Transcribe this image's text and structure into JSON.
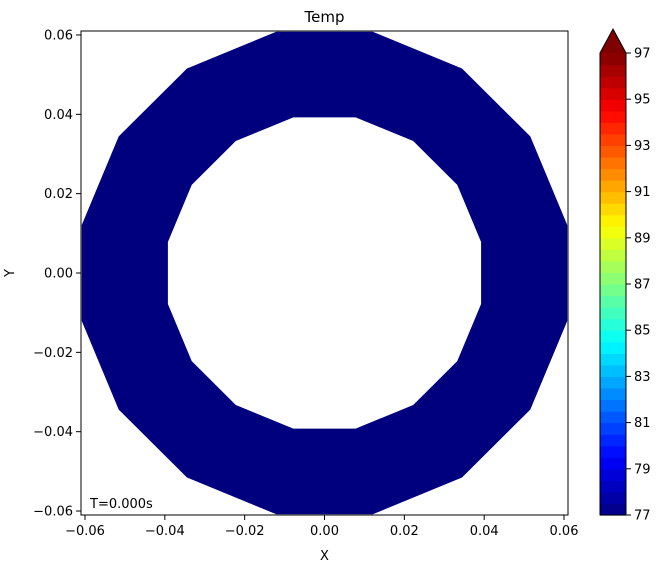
{
  "chart_data": {
    "type": "heatmap",
    "title": "Temp",
    "xlabel": "X",
    "ylabel": "Y",
    "xlim": [
      -0.061,
      0.061
    ],
    "ylim": [
      -0.061,
      0.061
    ],
    "xticks": [
      -0.06,
      -0.04,
      -0.02,
      0.0,
      0.02,
      0.04,
      0.06
    ],
    "xtick_labels": [
      "−0.06",
      "−0.04",
      "−0.02",
      "0.00",
      "0.02",
      "0.04",
      "0.06"
    ],
    "yticks": [
      -0.06,
      -0.04,
      -0.02,
      0.0,
      0.02,
      0.04,
      0.06
    ],
    "ytick_labels": [
      "−0.06",
      "−0.04",
      "−0.02",
      "0.00",
      "0.02",
      "0.04",
      "0.06"
    ],
    "annotation": "T=0.000s",
    "field": {
      "shape": "annulus-polygon",
      "sides": 16,
      "outer_radius": 0.062,
      "inner_radius": 0.04,
      "value": 77,
      "color": "#00007f"
    },
    "colorbar": {
      "min": 77,
      "max": 97,
      "ticks": [
        77,
        79,
        81,
        83,
        85,
        87,
        89,
        91,
        93,
        95,
        97
      ],
      "extend": "max",
      "colormap": "jet"
    },
    "grid": false
  }
}
